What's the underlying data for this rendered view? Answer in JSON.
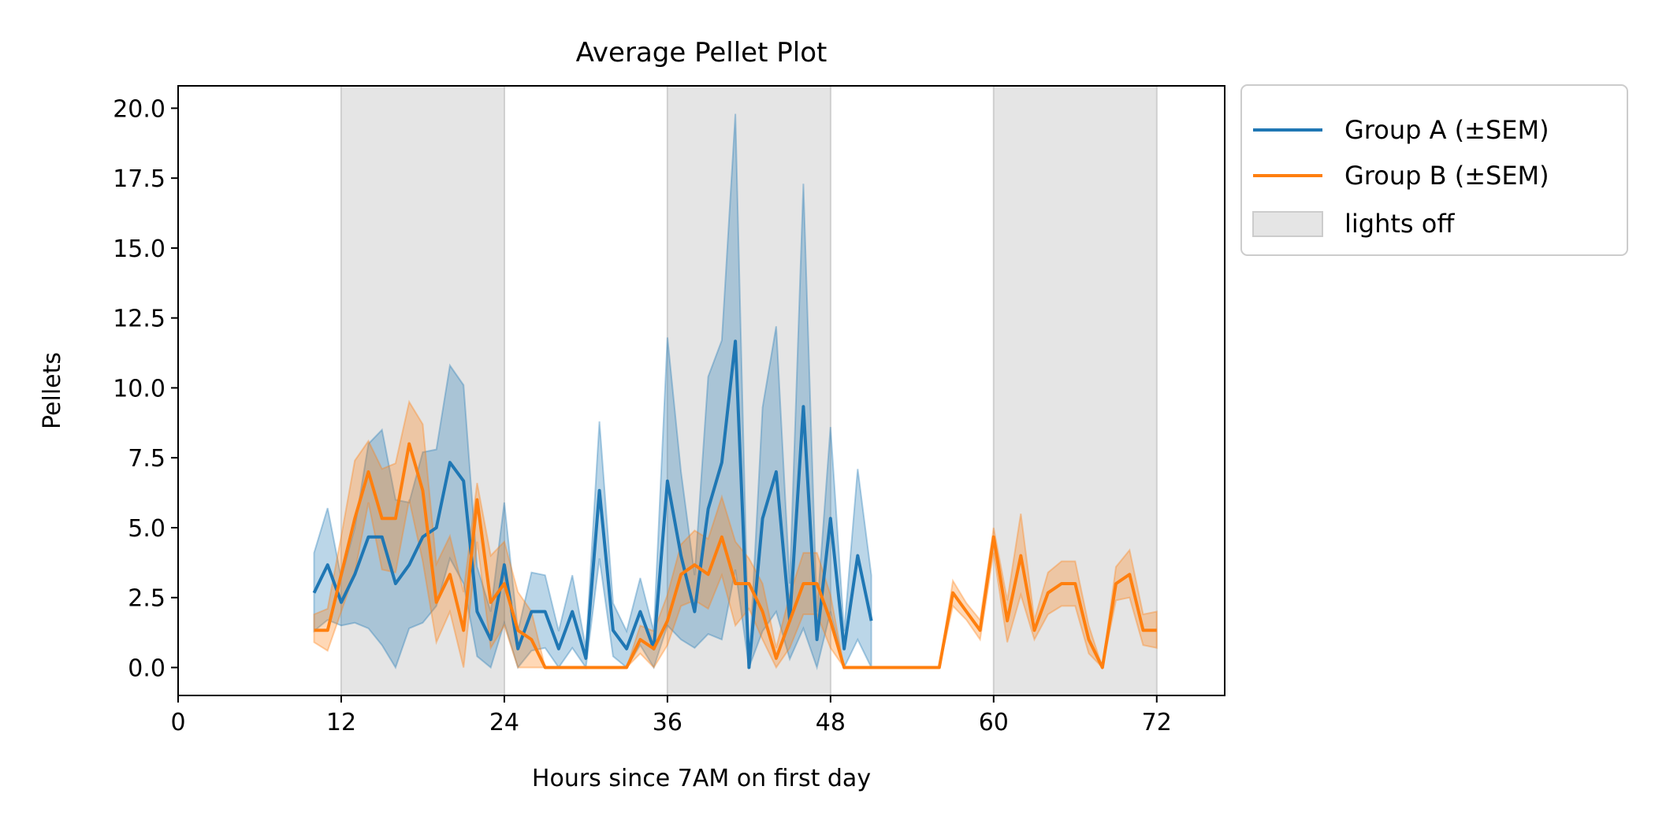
{
  "chart_data": {
    "type": "line",
    "title": "Average Pellet Plot",
    "xlabel": "Hours since 7AM on first day",
    "ylabel": "Pellets",
    "xlim": [
      0,
      77
    ],
    "ylim": [
      -1,
      20.8
    ],
    "xticks": [
      0,
      12,
      24,
      36,
      48,
      60,
      72
    ],
    "xtick_labels": [
      "0",
      "12",
      "24",
      "36",
      "48",
      "60",
      "72"
    ],
    "yticks": [
      0,
      2.5,
      5,
      7.5,
      10,
      12.5,
      15,
      17.5,
      20
    ],
    "ytick_labels": [
      "0.0",
      "2.5",
      "5.0",
      "7.5",
      "10.0",
      "12.5",
      "15.0",
      "17.5",
      "20.0"
    ],
    "grid": false,
    "legend_position": "outside upper right",
    "shaded_regions": [
      {
        "label": "lights off",
        "color": "#e5e5e5",
        "start": 12,
        "end": 24
      },
      {
        "label": "lights off",
        "color": "#e5e5e5",
        "start": 36,
        "end": 48
      },
      {
        "label": "lights off",
        "color": "#e5e5e5",
        "start": 60,
        "end": 72
      }
    ],
    "series": [
      {
        "name": "Group A (±SEM)",
        "color": "#1f77b4",
        "x": [
          10,
          11,
          12,
          13,
          14,
          15,
          16,
          17,
          18,
          19,
          20,
          21,
          22,
          23,
          24,
          25,
          26,
          27,
          28,
          29,
          30,
          31,
          32,
          33,
          34,
          35,
          36,
          37,
          38,
          39,
          40,
          41,
          42,
          43,
          44,
          45,
          46,
          47,
          48,
          49,
          50,
          51
        ],
        "values": [
          2.67,
          3.67,
          2.33,
          3.33,
          4.67,
          4.67,
          3.0,
          3.67,
          4.67,
          5.0,
          7.33,
          6.67,
          2.0,
          1.0,
          3.67,
          0.67,
          2.0,
          2.0,
          0.67,
          2.0,
          0.33,
          6.33,
          1.33,
          0.67,
          2.0,
          0.67,
          6.67,
          4.0,
          2.0,
          5.67,
          7.33,
          11.67,
          0.0,
          5.33,
          7.0,
          1.67,
          9.33,
          1.0,
          5.33,
          0.67,
          4.0,
          1.67
        ],
        "lower": [
          1.3,
          1.7,
          1.5,
          1.6,
          1.4,
          0.8,
          0.0,
          1.4,
          1.6,
          2.2,
          3.9,
          3.0,
          0.4,
          0.0,
          1.6,
          0.0,
          0.6,
          0.7,
          0.0,
          0.7,
          0.0,
          3.9,
          0.4,
          0.0,
          0.8,
          0.0,
          1.5,
          1.0,
          0.7,
          1.2,
          1.0,
          3.5,
          0.0,
          1.3,
          2.0,
          0.3,
          1.4,
          0.0,
          2.0,
          0.0,
          1.0,
          0.0
        ],
        "upper": [
          4.1,
          5.7,
          3.2,
          5.0,
          8.0,
          8.5,
          6.0,
          5.9,
          7.7,
          7.8,
          10.8,
          10.1,
          3.6,
          2.0,
          5.9,
          1.3,
          3.4,
          3.3,
          1.3,
          3.3,
          0.7,
          8.8,
          2.3,
          1.3,
          3.2,
          1.3,
          11.8,
          7.0,
          3.3,
          10.4,
          11.7,
          19.8,
          0.0,
          9.3,
          12.2,
          3.0,
          17.3,
          2.0,
          8.6,
          1.3,
          7.1,
          3.3
        ]
      },
      {
        "name": "Group B (±SEM)",
        "color": "#ff7f0e",
        "x": [
          10,
          11,
          12,
          13,
          14,
          15,
          16,
          17,
          18,
          19,
          20,
          21,
          22,
          23,
          24,
          25,
          26,
          27,
          28,
          29,
          30,
          31,
          32,
          33,
          34,
          35,
          36,
          37,
          38,
          39,
          40,
          41,
          42,
          43,
          44,
          45,
          46,
          47,
          48,
          49,
          50,
          51,
          52,
          53,
          54,
          55,
          56,
          57,
          58,
          59,
          60,
          61,
          62,
          63,
          64,
          65,
          66,
          67,
          68,
          69,
          70,
          71,
          72
        ],
        "values": [
          1.33,
          1.33,
          3.33,
          5.33,
          7.0,
          5.33,
          5.33,
          8.0,
          6.33,
          2.33,
          3.33,
          1.33,
          6.0,
          2.33,
          3.0,
          1.33,
          1.0,
          0.0,
          0.0,
          0.0,
          0.0,
          0.0,
          0.0,
          0.0,
          1.0,
          0.67,
          1.67,
          3.33,
          3.67,
          3.33,
          4.67,
          3.0,
          3.0,
          2.0,
          0.33,
          1.67,
          3.0,
          3.0,
          1.67,
          0.0,
          0.0,
          0.0,
          0.0,
          0.0,
          0.0,
          0.0,
          0.0,
          2.67,
          2.0,
          1.33,
          4.67,
          1.67,
          4.0,
          1.33,
          2.67,
          3.0,
          3.0,
          1.0,
          0.0,
          3.0,
          3.33,
          1.33,
          1.33
        ],
        "lower": [
          0.9,
          0.6,
          2.0,
          3.4,
          5.9,
          3.5,
          3.4,
          6.0,
          3.8,
          0.9,
          2.0,
          0.0,
          4.5,
          0.7,
          1.5,
          0.0,
          0.0,
          0.0,
          0.0,
          0.0,
          0.0,
          0.0,
          0.0,
          0.0,
          0.5,
          0.0,
          0.8,
          2.2,
          2.4,
          2.1,
          3.3,
          1.5,
          2.1,
          1.0,
          0.0,
          0.7,
          1.9,
          1.9,
          0.7,
          0.0,
          0.0,
          0.0,
          0.0,
          0.0,
          0.0,
          0.0,
          0.0,
          2.2,
          1.7,
          1.0,
          4.1,
          0.9,
          2.6,
          1.0,
          1.9,
          2.2,
          2.2,
          0.5,
          0.0,
          2.4,
          2.5,
          0.8,
          0.7
        ],
        "upper": [
          1.9,
          2.1,
          4.7,
          7.4,
          8.1,
          7.1,
          7.3,
          9.5,
          8.7,
          3.7,
          4.7,
          2.7,
          6.6,
          4.0,
          4.5,
          2.7,
          2.0,
          0.0,
          0.0,
          0.0,
          0.0,
          0.0,
          0.0,
          0.0,
          1.5,
          1.3,
          2.6,
          4.4,
          4.9,
          4.6,
          6.1,
          4.5,
          3.9,
          3.0,
          0.7,
          2.6,
          4.1,
          4.1,
          2.6,
          0.0,
          0.0,
          0.0,
          0.0,
          0.0,
          0.0,
          0.0,
          0.0,
          3.1,
          2.3,
          1.7,
          5.0,
          2.4,
          5.5,
          1.7,
          3.4,
          3.8,
          3.8,
          1.5,
          0.0,
          3.6,
          4.2,
          1.9,
          2.0
        ]
      }
    ],
    "legend": [
      {
        "label": "Group A (±SEM)",
        "kind": "line",
        "color": "#1f77b4"
      },
      {
        "label": "Group B (±SEM)",
        "kind": "line",
        "color": "#ff7f0e"
      },
      {
        "label": "lights off",
        "kind": "patch",
        "color": "#e5e5e5"
      }
    ]
  }
}
